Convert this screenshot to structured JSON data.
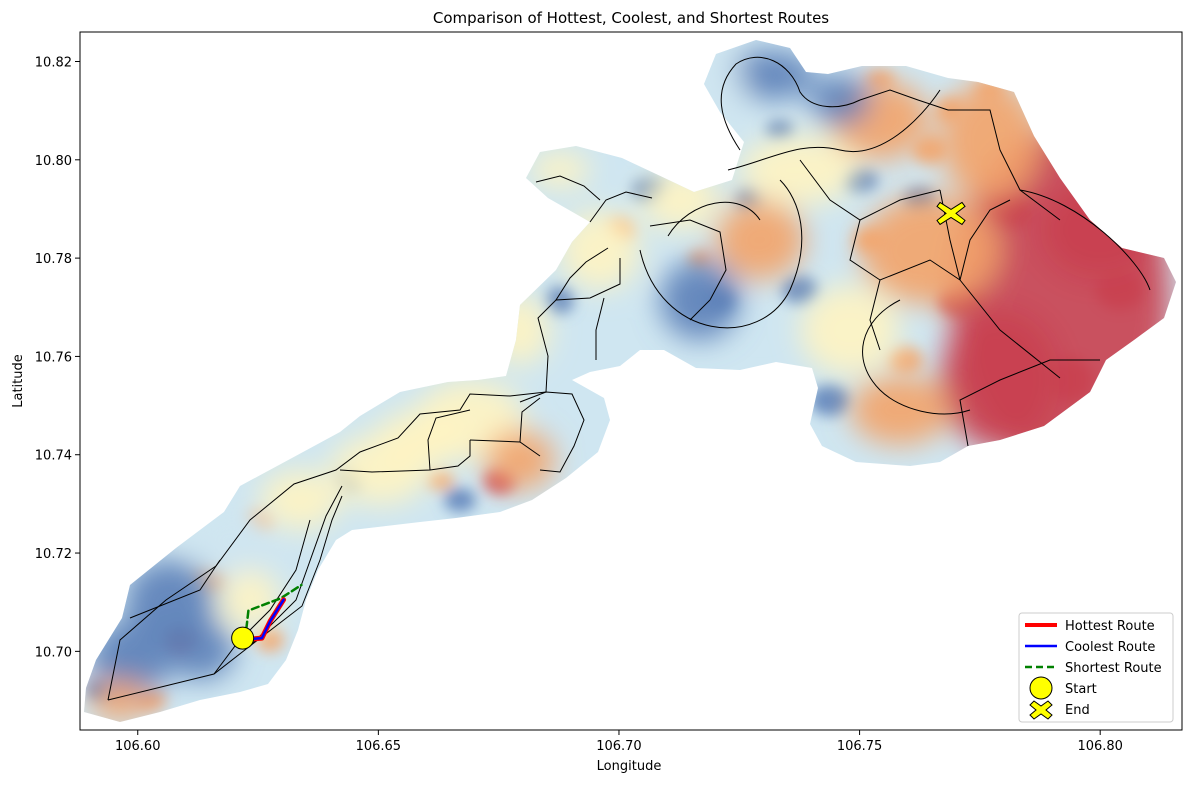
{
  "chart_data": {
    "type": "map",
    "title": "Comparison of Hottest, Coolest, and Shortest Routes",
    "xlabel": "Longitude",
    "ylabel": "Latitude",
    "xlim": [
      106.588,
      106.817
    ],
    "ylim": [
      10.684,
      10.826
    ],
    "xticks": [
      106.6,
      106.65,
      106.7,
      106.75,
      106.8
    ],
    "yticks": [
      10.7,
      10.72,
      10.74,
      10.76,
      10.78,
      10.8,
      10.82
    ],
    "xtick_labels": [
      "106.60",
      "106.65",
      "106.70",
      "106.75",
      "106.80"
    ],
    "ytick_labels": [
      "10.70",
      "10.72",
      "10.74",
      "10.76",
      "10.78",
      "10.80",
      "10.82"
    ],
    "legend_position": "bottom-right",
    "heat_colors": {
      "cool": "#5b7fb8",
      "light_cool": "#cfe6f1",
      "neutral": "#fff4c2",
      "warm": "#f3a46a",
      "hot": "#c9404f"
    },
    "series": [
      {
        "name": "Hottest Route",
        "color": "#ff0000",
        "style": "solid",
        "points": [
          [
            106.6223,
            10.7024
          ],
          [
            106.6258,
            10.7027
          ],
          [
            106.6276,
            10.7063
          ],
          [
            106.6303,
            10.7105
          ]
        ]
      },
      {
        "name": "Coolest Route",
        "color": "#0000ff",
        "style": "solid",
        "points": [
          [
            106.6223,
            10.7024
          ],
          [
            106.6258,
            10.7027
          ],
          [
            106.6276,
            10.7063
          ],
          [
            106.6303,
            10.7105
          ]
        ]
      },
      {
        "name": "Shortest Route",
        "color": "#008000",
        "style": "dashed",
        "points": [
          [
            106.6223,
            10.7024
          ],
          [
            106.623,
            10.7083
          ],
          [
            106.6297,
            10.7108
          ],
          [
            106.634,
            10.7135
          ]
        ]
      }
    ],
    "markers": [
      {
        "name": "Start",
        "shape": "circle",
        "color": "#ffff00",
        "point": [
          106.6218,
          10.7027
        ]
      },
      {
        "name": "End",
        "shape": "x",
        "color": "#ffff00",
        "point": [
          106.769,
          10.7895
        ]
      }
    ]
  }
}
